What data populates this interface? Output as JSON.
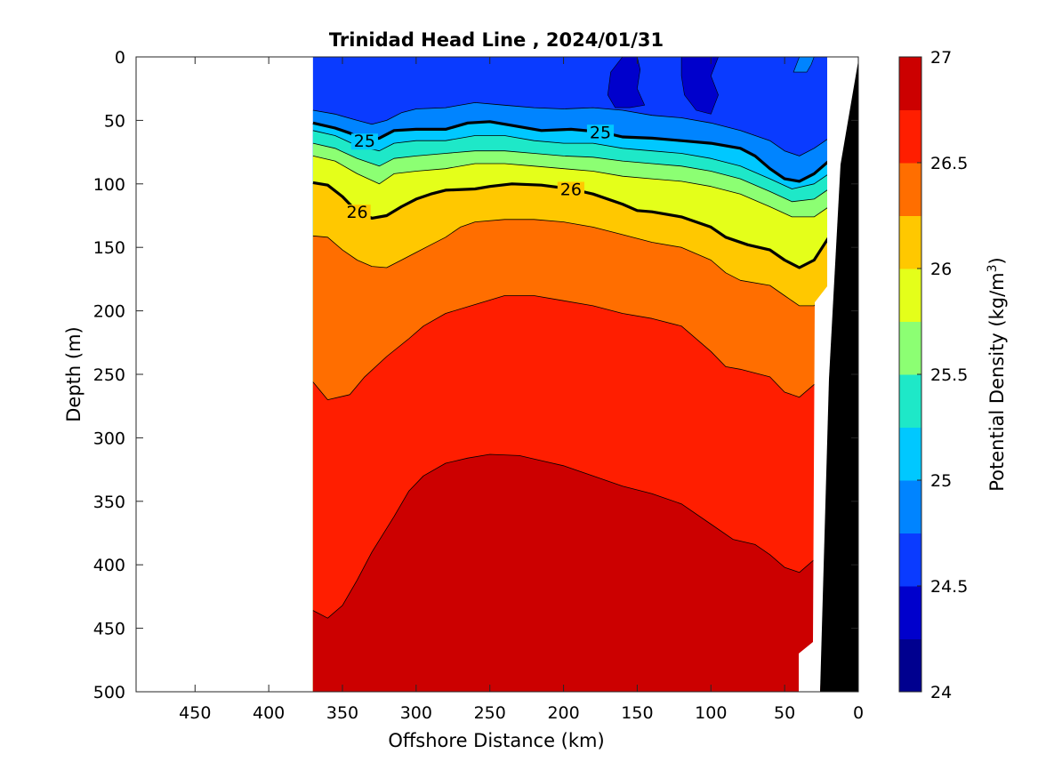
{
  "chart_data": {
    "type": "contour",
    "title": "Trinidad Head Line , 2024/01/31",
    "xlabel": "Offshore Distance (km)",
    "ylabel": "Depth (m)",
    "colorbar_label": "Potential Density (kg/m",
    "colorbar_label_sup": "3",
    "colorbar_label_tail": ")",
    "xlim": [
      490,
      0
    ],
    "ylim": [
      0,
      500
    ],
    "x_reversed": true,
    "y_reversed": true,
    "xticks": [
      450,
      400,
      350,
      300,
      250,
      200,
      150,
      100,
      50,
      0
    ],
    "yticks": [
      0,
      50,
      100,
      150,
      200,
      250,
      300,
      350,
      400,
      450,
      500
    ],
    "clim": [
      24,
      27
    ],
    "colorbar_ticks": [
      24,
      24.5,
      25,
      25.5,
      26,
      26.5,
      27
    ],
    "contour_levels": [
      24,
      24.25,
      24.5,
      24.75,
      25,
      25.25,
      25.5,
      25.75,
      26,
      26.25,
      26.5,
      26.75,
      27
    ],
    "level_colors": [
      "#00008f",
      "#0000cc",
      "#0a3bff",
      "#0084ff",
      "#00c8ff",
      "#1ee8c8",
      "#8cff73",
      "#e4ff1a",
      "#ffc800",
      "#ff6e00",
      "#ff1e00",
      "#cc0000"
    ],
    "labeled_contours": [
      25,
      26
    ],
    "data_extent_km": [
      370,
      20
    ],
    "isopycnals": [
      {
        "level": 24.75,
        "points": [
          [
            370,
            42
          ],
          [
            355,
            45
          ],
          [
            340,
            50
          ],
          [
            330,
            53
          ],
          [
            320,
            50
          ],
          [
            310,
            44
          ],
          [
            300,
            41
          ],
          [
            280,
            40
          ],
          [
            260,
            36
          ],
          [
            240,
            38
          ],
          [
            220,
            40
          ],
          [
            200,
            41
          ],
          [
            180,
            40
          ],
          [
            160,
            42
          ],
          [
            140,
            46
          ],
          [
            120,
            48
          ],
          [
            100,
            52
          ],
          [
            80,
            58
          ],
          [
            60,
            66
          ],
          [
            50,
            74
          ],
          [
            40,
            78
          ],
          [
            30,
            72
          ],
          [
            20,
            64
          ]
        ]
      },
      {
        "level": 25.0,
        "points": [
          [
            370,
            52
          ],
          [
            355,
            56
          ],
          [
            345,
            60
          ],
          [
            335,
            66
          ],
          [
            325,
            64
          ],
          [
            315,
            58
          ],
          [
            300,
            57
          ],
          [
            280,
            57
          ],
          [
            265,
            52
          ],
          [
            250,
            51
          ],
          [
            235,
            54
          ],
          [
            215,
            58
          ],
          [
            195,
            57
          ],
          [
            175,
            59
          ],
          [
            160,
            63
          ],
          [
            140,
            64
          ],
          [
            120,
            66
          ],
          [
            100,
            68
          ],
          [
            80,
            72
          ],
          [
            70,
            78
          ],
          [
            60,
            88
          ],
          [
            50,
            96
          ],
          [
            40,
            98
          ],
          [
            30,
            92
          ],
          [
            20,
            82
          ]
        ]
      },
      {
        "level": 25.25,
        "points": [
          [
            370,
            58
          ],
          [
            355,
            62
          ],
          [
            340,
            70
          ],
          [
            325,
            74
          ],
          [
            315,
            68
          ],
          [
            300,
            66
          ],
          [
            280,
            66
          ],
          [
            260,
            62
          ],
          [
            240,
            62
          ],
          [
            220,
            66
          ],
          [
            200,
            68
          ],
          [
            180,
            68
          ],
          [
            160,
            72
          ],
          [
            140,
            74
          ],
          [
            120,
            76
          ],
          [
            100,
            80
          ],
          [
            80,
            86
          ],
          [
            60,
            96
          ],
          [
            45,
            104
          ],
          [
            30,
            100
          ],
          [
            20,
            92
          ]
        ]
      },
      {
        "level": 25.5,
        "points": [
          [
            370,
            68
          ],
          [
            355,
            72
          ],
          [
            340,
            80
          ],
          [
            325,
            86
          ],
          [
            315,
            80
          ],
          [
            300,
            78
          ],
          [
            280,
            76
          ],
          [
            260,
            74
          ],
          [
            240,
            74
          ],
          [
            220,
            76
          ],
          [
            200,
            78
          ],
          [
            180,
            79
          ],
          [
            160,
            82
          ],
          [
            140,
            84
          ],
          [
            120,
            86
          ],
          [
            100,
            90
          ],
          [
            80,
            96
          ],
          [
            60,
            106
          ],
          [
            45,
            114
          ],
          [
            30,
            112
          ],
          [
            20,
            104
          ]
        ]
      },
      {
        "level": 25.75,
        "points": [
          [
            370,
            78
          ],
          [
            355,
            82
          ],
          [
            340,
            92
          ],
          [
            325,
            100
          ],
          [
            315,
            92
          ],
          [
            300,
            90
          ],
          [
            280,
            88
          ],
          [
            260,
            84
          ],
          [
            240,
            84
          ],
          [
            220,
            86
          ],
          [
            200,
            88
          ],
          [
            180,
            90
          ],
          [
            160,
            94
          ],
          [
            140,
            96
          ],
          [
            120,
            98
          ],
          [
            100,
            102
          ],
          [
            80,
            108
          ],
          [
            60,
            118
          ],
          [
            45,
            126
          ],
          [
            30,
            126
          ],
          [
            20,
            118
          ]
        ]
      },
      {
        "level": 26.0,
        "points": [
          [
            370,
            99
          ],
          [
            360,
            101
          ],
          [
            350,
            110
          ],
          [
            340,
            122
          ],
          [
            330,
            127
          ],
          [
            320,
            125
          ],
          [
            310,
            118
          ],
          [
            300,
            112
          ],
          [
            290,
            108
          ],
          [
            280,
            105
          ],
          [
            260,
            104
          ],
          [
            250,
            102
          ],
          [
            235,
            100
          ],
          [
            215,
            101
          ],
          [
            195,
            104
          ],
          [
            180,
            108
          ],
          [
            160,
            116
          ],
          [
            150,
            121
          ],
          [
            140,
            122
          ],
          [
            120,
            126
          ],
          [
            100,
            134
          ],
          [
            90,
            142
          ],
          [
            75,
            148
          ],
          [
            60,
            152
          ],
          [
            50,
            160
          ],
          [
            40,
            166
          ],
          [
            30,
            160
          ],
          [
            20,
            142
          ]
        ]
      },
      {
        "level": 26.25,
        "points": [
          [
            370,
            141
          ],
          [
            360,
            142
          ],
          [
            350,
            152
          ],
          [
            340,
            160
          ],
          [
            330,
            165
          ],
          [
            320,
            166
          ],
          [
            310,
            160
          ],
          [
            300,
            154
          ],
          [
            290,
            148
          ],
          [
            280,
            142
          ],
          [
            270,
            134
          ],
          [
            260,
            130
          ],
          [
            240,
            128
          ],
          [
            220,
            128
          ],
          [
            200,
            130
          ],
          [
            180,
            134
          ],
          [
            160,
            140
          ],
          [
            140,
            146
          ],
          [
            120,
            150
          ],
          [
            100,
            160
          ],
          [
            90,
            170
          ],
          [
            80,
            176
          ],
          [
            60,
            180
          ],
          [
            50,
            188
          ],
          [
            40,
            196
          ],
          [
            30,
            196
          ],
          [
            25,
            190
          ]
        ]
      },
      {
        "level": 26.5,
        "points": [
          [
            370,
            256
          ],
          [
            360,
            270
          ],
          [
            345,
            266
          ],
          [
            335,
            252
          ],
          [
            320,
            236
          ],
          [
            305,
            222
          ],
          [
            295,
            212
          ],
          [
            280,
            202
          ],
          [
            260,
            195
          ],
          [
            240,
            188
          ],
          [
            220,
            188
          ],
          [
            200,
            192
          ],
          [
            180,
            196
          ],
          [
            160,
            202
          ],
          [
            140,
            206
          ],
          [
            120,
            212
          ],
          [
            100,
            232
          ],
          [
            90,
            244
          ],
          [
            80,
            246
          ],
          [
            60,
            252
          ],
          [
            50,
            264
          ],
          [
            40,
            268
          ],
          [
            30,
            258
          ],
          [
            25,
            266
          ]
        ]
      },
      {
        "level": 26.75,
        "points": [
          [
            370,
            436
          ],
          [
            360,
            442
          ],
          [
            350,
            432
          ],
          [
            340,
            412
          ],
          [
            330,
            390
          ],
          [
            315,
            362
          ],
          [
            305,
            342
          ],
          [
            295,
            330
          ],
          [
            280,
            320
          ],
          [
            265,
            316
          ],
          [
            250,
            313
          ],
          [
            230,
            314
          ],
          [
            215,
            318
          ],
          [
            200,
            322
          ],
          [
            180,
            330
          ],
          [
            160,
            338
          ],
          [
            140,
            344
          ],
          [
            120,
            352
          ],
          [
            100,
            368
          ],
          [
            85,
            380
          ],
          [
            70,
            384
          ],
          [
            60,
            392
          ],
          [
            50,
            402
          ],
          [
            40,
            406
          ],
          [
            30,
            396
          ],
          [
            25,
            420
          ]
        ]
      }
    ]
  }
}
